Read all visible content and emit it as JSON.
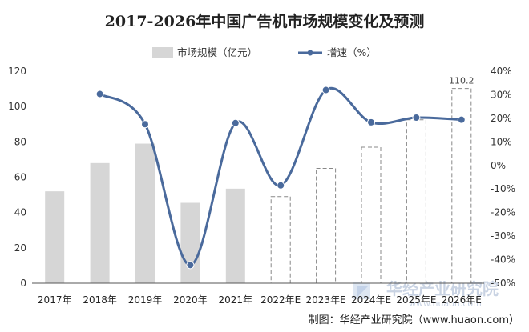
{
  "chart_data": {
    "type": "bar+line",
    "title": "2017-2026年中国广告机市场规模变化及预测",
    "categories": [
      "2017年",
      "2018年",
      "2019年",
      "2020年",
      "2021年",
      "2022年E",
      "2023年E",
      "2024年E",
      "2025年E",
      "2026年E"
    ],
    "series": [
      {
        "name": "市场规模（亿元）",
        "type": "bar",
        "axis": "left",
        "values": [
          52,
          68,
          79,
          45.5,
          53.5,
          49,
          65,
          77,
          92.5,
          110.2
        ],
        "forecast": [
          false,
          false,
          false,
          false,
          false,
          true,
          true,
          true,
          true,
          true
        ],
        "color": "#d6d6d6"
      },
      {
        "name": "增速（%）",
        "type": "line",
        "axis": "right",
        "values": [
          null,
          30.3,
          17.5,
          -42.3,
          18,
          -8.5,
          32,
          18.3,
          20.3,
          19.4
        ],
        "color": "#4a6a9c"
      }
    ],
    "data_labels": [
      {
        "category": "2026年E",
        "text": "110.2"
      }
    ],
    "left_axis": {
      "min": 0,
      "max": 120,
      "step": 20,
      "ticks": [
        "0",
        "20",
        "40",
        "60",
        "80",
        "100",
        "120"
      ]
    },
    "right_axis": {
      "min": -50,
      "max": 40,
      "step": 10,
      "ticks": [
        "-50%",
        "-40%",
        "-30%",
        "-20%",
        "-10%",
        "0%",
        "10%",
        "20%",
        "30%",
        "40%"
      ]
    },
    "grid": false,
    "legend_position": "top"
  },
  "source_text": "制图：华经产业研究院（www.huaon.com）",
  "watermark": {
    "name": "华经产业研究院",
    "url": "www.huaon.com"
  }
}
